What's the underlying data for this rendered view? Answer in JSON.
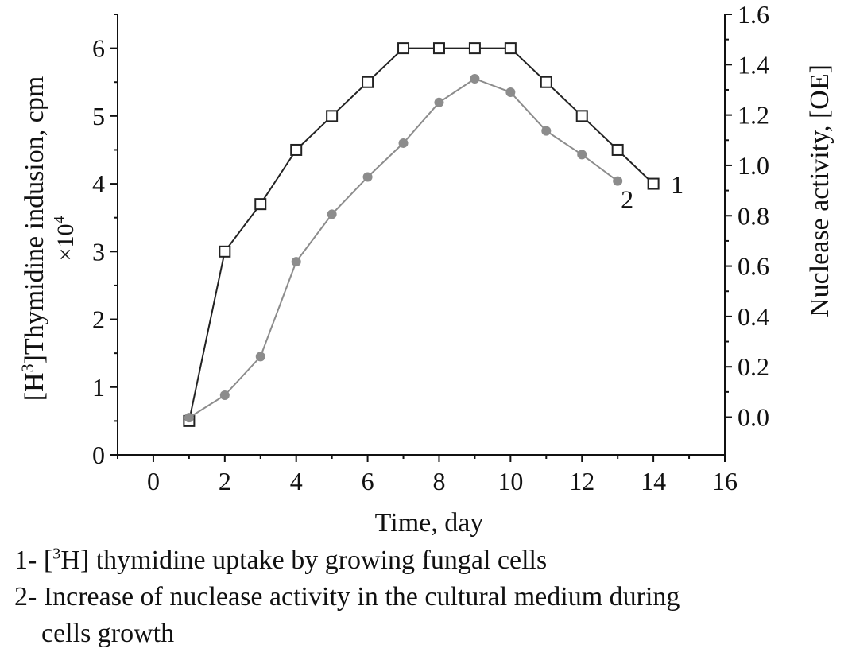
{
  "chart_data": {
    "type": "line",
    "xlabel": "Time, day",
    "ylabel_left_parts": [
      "[H",
      "3",
      "]Thymidine indusion, cpm"
    ],
    "ylabel_left_line2": [
      "×10",
      "4"
    ],
    "ylabel_right": "Nuclease activity, [OE]",
    "xlim": [
      -1,
      16
    ],
    "xticks": [
      0,
      2,
      4,
      6,
      8,
      10,
      12,
      14,
      16
    ],
    "ylim_left": [
      0,
      6.5
    ],
    "yticks_left": [
      0,
      1,
      2,
      3,
      4,
      5,
      6
    ],
    "ylim_right": [
      -0.15,
      1.6
    ],
    "yticks_right": [
      "0.0",
      "0.2",
      "0.4",
      "0.6",
      "0.8",
      "1.0",
      "1.2",
      "1.4",
      "1.6"
    ],
    "series": [
      {
        "label": "1",
        "axis": "left",
        "color": "#222222",
        "marker": "open-square",
        "x": [
          1,
          2,
          3,
          4,
          5,
          6,
          7,
          8,
          9,
          10,
          11,
          12,
          13,
          14
        ],
        "y": [
          0.5,
          3.0,
          3.7,
          4.5,
          5.0,
          5.5,
          6.0,
          6.0,
          6.0,
          6.0,
          5.5,
          5.0,
          4.5,
          4.0
        ]
      },
      {
        "label": "2",
        "axis": "left",
        "color": "#8c8c8c",
        "marker": "filled-circle",
        "x": [
          1,
          2,
          3,
          4,
          5,
          6,
          7,
          8,
          9,
          10,
          11,
          12,
          13
        ],
        "y": [
          0.55,
          0.88,
          1.45,
          2.85,
          3.55,
          4.1,
          4.6,
          5.2,
          5.55,
          5.35,
          4.78,
          4.43,
          4.04
        ]
      }
    ]
  },
  "legend": {
    "line1_parts": [
      "1- [",
      "3",
      "H] thymidine uptake by growing fungal cells"
    ],
    "line2": "2- Increase of nuclease activity in the cultural medium during",
    "line3": "cells growth"
  }
}
